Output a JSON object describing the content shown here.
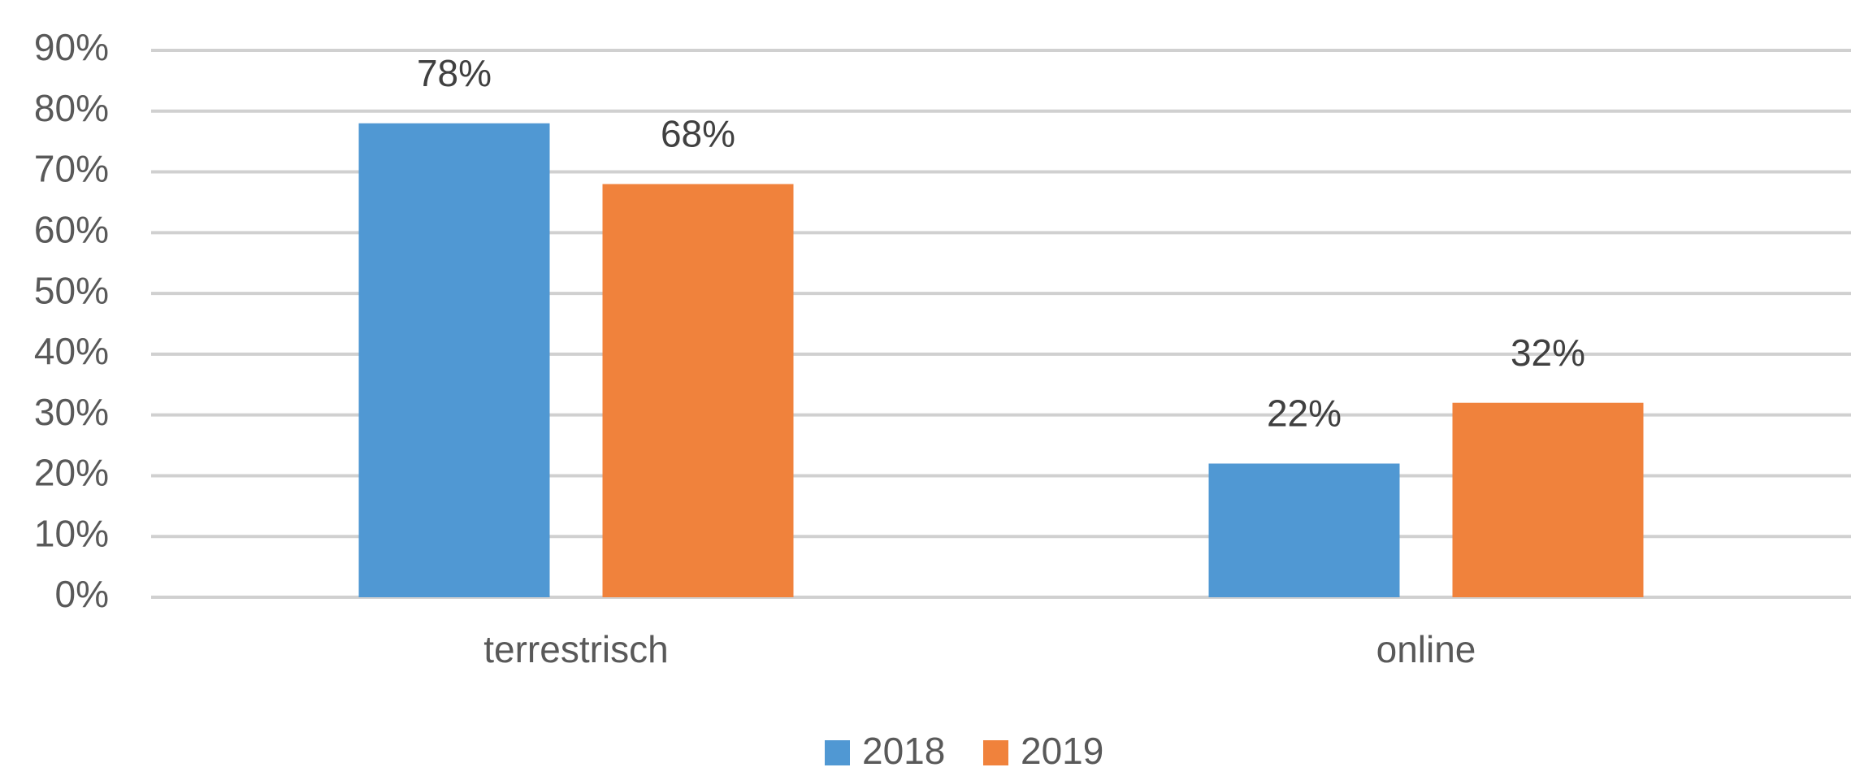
{
  "chart_data": {
    "type": "bar",
    "categories": [
      "terrestrisch",
      "online"
    ],
    "series": [
      {
        "name": "2018",
        "color": "#5098d3",
        "values": [
          78,
          22
        ],
        "value_labels": [
          "78%",
          "22%"
        ]
      },
      {
        "name": "2019",
        "color": "#f0823c",
        "values": [
          68,
          32
        ],
        "value_labels": [
          "68%",
          "32%"
        ]
      }
    ],
    "ylim": [
      0,
      90
    ],
    "yticks": [
      {
        "value": 0,
        "label": "0%"
      },
      {
        "value": 10,
        "label": "10%"
      },
      {
        "value": 20,
        "label": "20%"
      },
      {
        "value": 30,
        "label": "30%"
      },
      {
        "value": 40,
        "label": "40%"
      },
      {
        "value": 50,
        "label": "50%"
      },
      {
        "value": 60,
        "label": "60%"
      },
      {
        "value": 70,
        "label": "70%"
      },
      {
        "value": 80,
        "label": "80%"
      },
      {
        "value": 90,
        "label": "90%"
      }
    ],
    "grid": true,
    "legend": "bottom"
  }
}
